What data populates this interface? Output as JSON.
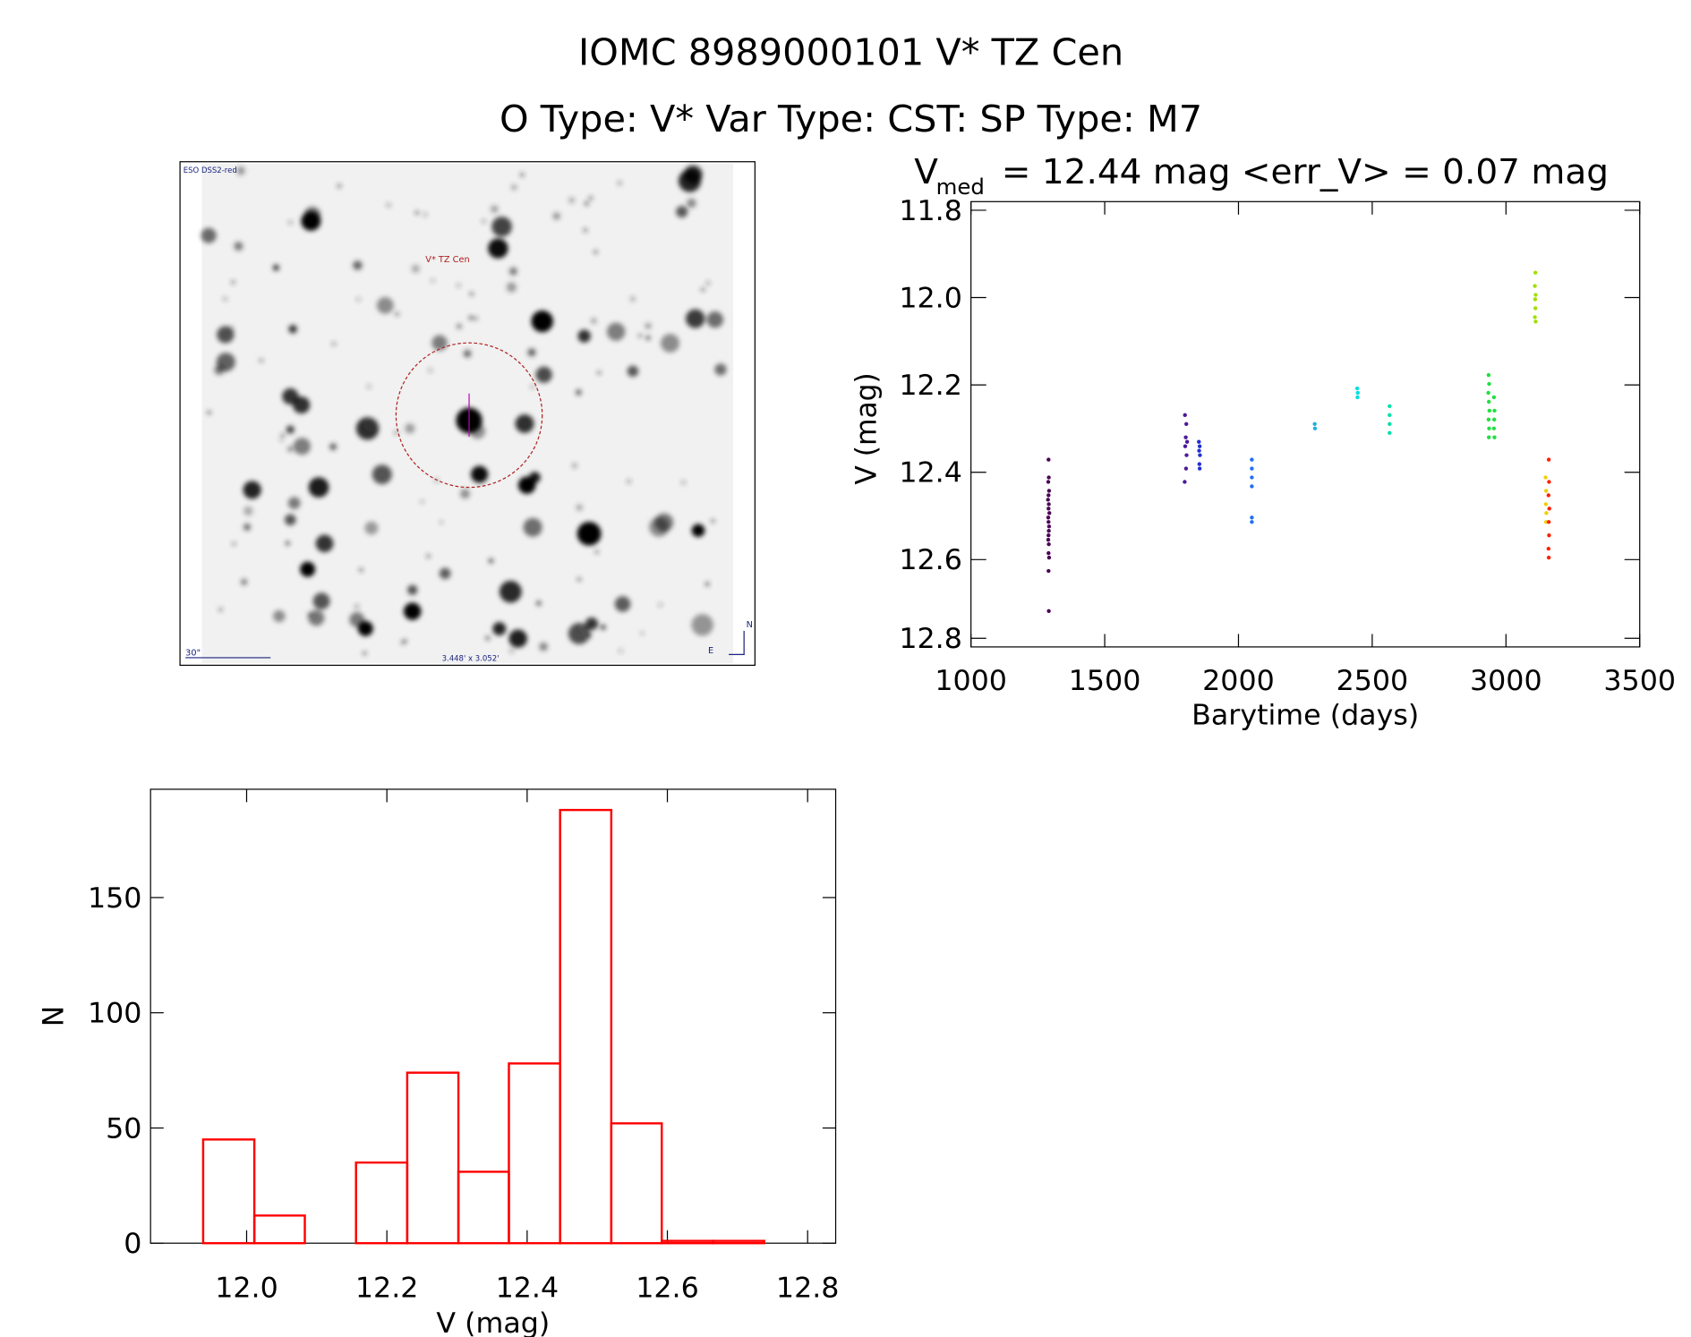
{
  "header": {
    "title": "IOMC 8989000101   V* TZ Cen",
    "subtitle": "O Type: V*  Var Type: CST:  SP Type: M7"
  },
  "image_panel": {
    "survey": "ESO DSS2-red",
    "target": "V* TZ Cen",
    "scale": "30\"",
    "field": "3.448' x 3.052'",
    "north": "N",
    "east": "E"
  },
  "chart_data": [
    {
      "type": "scatter",
      "title": "V",
      "title_subscript": "med",
      "title_rest": "= 12.44 mag <err_V> = 0.07 mag",
      "x_label": "Barytime (days)",
      "y_label": "V (mag)",
      "xlim": [
        1000,
        3500
      ],
      "xticks": [
        1000,
        1500,
        2000,
        2500,
        3000,
        3500
      ],
      "ylim": [
        12.8,
        11.8
      ],
      "yticks": [
        11.8,
        {
          "value": 12,
          "label": "12.0"
        },
        12.2,
        12.4,
        12.6,
        12.8
      ],
      "series": [
        {
          "color": "#4b0055",
          "x": [
            1290,
            1291,
            1289,
            1292,
            1290,
            1288,
            1291,
            1290,
            1293,
            1289,
            1290,
            1292,
            1291,
            1290,
            1289,
            1291,
            1290,
            1292,
            1290,
            1291
          ],
          "values": [
            12.36,
            12.4,
            12.41,
            12.43,
            12.44,
            12.45,
            12.46,
            12.47,
            12.48,
            12.49,
            12.5,
            12.51,
            12.52,
            12.53,
            12.54,
            12.55,
            12.57,
            12.58,
            12.61,
            12.7
          ]
        },
        {
          "color": "#4b1a9b",
          "x": [
            1800,
            1805,
            1803,
            1808,
            1801,
            1806,
            1804,
            1799
          ],
          "values": [
            12.26,
            12.28,
            12.31,
            12.32,
            12.33,
            12.35,
            12.38,
            12.41
          ]
        },
        {
          "color": "#2030d0",
          "x": [
            1852,
            1855,
            1853,
            1856,
            1854,
            1855
          ],
          "values": [
            12.32,
            12.33,
            12.34,
            12.35,
            12.37,
            12.38
          ]
        },
        {
          "color": "#2070f0",
          "x": [
            2050,
            2050,
            2050,
            2050,
            2050,
            2050
          ],
          "values": [
            12.36,
            12.38,
            12.4,
            12.42,
            12.49,
            12.5
          ]
        },
        {
          "color": "#20b0e0",
          "x": [
            2285,
            2286
          ],
          "values": [
            12.28,
            12.29
          ]
        },
        {
          "color": "#00dde0",
          "x": [
            2444,
            2446,
            2445
          ],
          "values": [
            12.2,
            12.21,
            12.22
          ]
        },
        {
          "color": "#00e0a8",
          "x": [
            2565,
            2565,
            2565,
            2565
          ],
          "values": [
            12.24,
            12.26,
            12.28,
            12.3
          ]
        },
        {
          "color": "#20e040",
          "x": [
            2935,
            2937,
            2934,
            2936,
            2938,
            2935,
            2937,
            2936,
            2955,
            2957,
            2956,
            2955,
            2957
          ],
          "values": [
            12.17,
            12.19,
            12.21,
            12.23,
            12.25,
            12.27,
            12.29,
            12.31,
            12.22,
            12.25,
            12.27,
            12.29,
            12.31
          ]
        },
        {
          "color": "#a0e000",
          "x": [
            3110,
            3108,
            3111,
            3109,
            3110,
            3108,
            3111
          ],
          "values": [
            11.94,
            11.97,
            11.99,
            12.0,
            12.02,
            12.04,
            12.05
          ]
        },
        {
          "color": "#f0d000",
          "x": [
            3148,
            3150,
            3149,
            3151,
            3150
          ],
          "values": [
            12.4,
            12.43,
            12.46,
            12.48,
            12.5
          ]
        },
        {
          "color": "#ff2000",
          "x": [
            3160,
            3161,
            3159,
            3162,
            3160,
            3161,
            3159,
            3160
          ],
          "values": [
            12.36,
            12.41,
            12.44,
            12.47,
            12.5,
            12.53,
            12.56,
            12.58
          ]
        }
      ]
    },
    {
      "type": "histogram",
      "x_label": "V (mag)",
      "y_label": "N",
      "color": "#ff0000",
      "bins": [
        11.938,
        12.011,
        12.083,
        12.156,
        12.229,
        12.302,
        12.374,
        12.447,
        12.52,
        12.592,
        12.665,
        12.738
      ],
      "values": [
        45,
        12,
        0,
        35,
        74,
        31,
        78,
        188,
        52,
        1,
        1
      ],
      "xlim": [
        11.863,
        12.84
      ],
      "xticks": [
        {
          "value": 12,
          "label": "12.0"
        },
        12.2,
        12.4,
        12.6,
        12.8
      ],
      "ylim": [
        0,
        197
      ],
      "yticks": [
        0,
        50,
        100,
        150
      ]
    }
  ]
}
